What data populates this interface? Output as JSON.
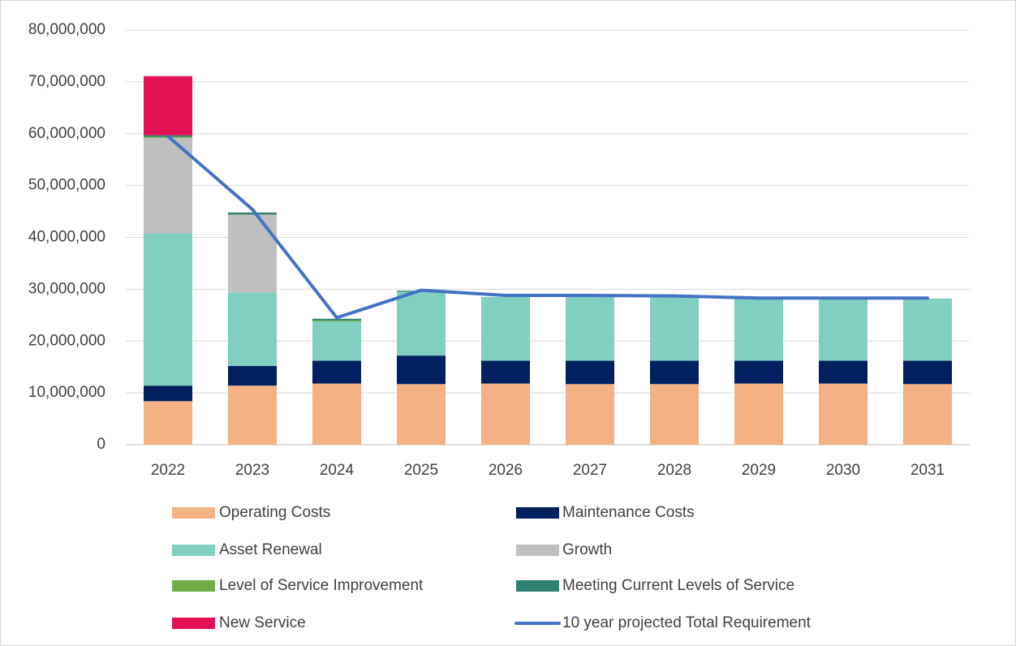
{
  "chart_data": {
    "type": "bar",
    "stacked": true,
    "categories": [
      "2022",
      "2023",
      "2024",
      "2025",
      "2026",
      "2027",
      "2028",
      "2029",
      "2030",
      "2031"
    ],
    "series": [
      {
        "name": "Operating Costs",
        "color": "#f4b183",
        "values": [
          8400000,
          11400000,
          11800000,
          11700000,
          11800000,
          11700000,
          11700000,
          11800000,
          11800000,
          11700000
        ]
      },
      {
        "name": "Maintenance Costs",
        "color": "#002060",
        "values": [
          3000000,
          3800000,
          4400000,
          5500000,
          4400000,
          4500000,
          4500000,
          4400000,
          4400000,
          4500000
        ]
      },
      {
        "name": "Asset Renewal",
        "color": "#80cfc0",
        "values": [
          29400000,
          14200000,
          7600000,
          12300000,
          12300000,
          12300000,
          12300000,
          12000000,
          12000000,
          12000000
        ]
      },
      {
        "name": "Growth",
        "color": "#bfbfbf",
        "values": [
          18400000,
          15000000,
          0,
          0,
          0,
          0,
          0,
          0,
          0,
          0
        ]
      },
      {
        "name": "Level of Service Improvement",
        "color": "#70ad47",
        "values": [
          200000,
          0,
          200000,
          0,
          0,
          0,
          0,
          0,
          0,
          0
        ]
      },
      {
        "name": "Meeting Current Levels of Service",
        "color": "#2e8070",
        "values": [
          300000,
          400000,
          300000,
          200000,
          0,
          0,
          0,
          0,
          0,
          0
        ]
      },
      {
        "name": "New Service",
        "color": "#e31154",
        "values": [
          11400000,
          0,
          0,
          0,
          0,
          0,
          0,
          0,
          0,
          0
        ]
      },
      {
        "name": "10 year projected Total Requirement",
        "color": "#4472c4",
        "type": "line",
        "values": [
          59500000,
          45400000,
          24500000,
          29800000,
          28800000,
          28800000,
          28700000,
          28300000,
          28300000,
          28300000
        ]
      }
    ],
    "ylim": [
      0,
      80000000
    ],
    "yticks": [
      0,
      {
        "value": 10000000,
        "label": "10,000,000"
      },
      {
        "value": 20000000,
        "label": "20,000,000"
      },
      {
        "value": 30000000,
        "label": "30,000,000"
      },
      {
        "value": 40000000,
        "label": "40,000,000"
      },
      {
        "value": 50000000,
        "label": "50,000,000"
      },
      {
        "value": 60000000,
        "label": "60,000,000"
      },
      {
        "value": 70000000,
        "label": "70,000,000"
      },
      {
        "value": 80000000,
        "label": "80,000,000"
      }
    ],
    "grid": true,
    "legend": "bottom"
  }
}
